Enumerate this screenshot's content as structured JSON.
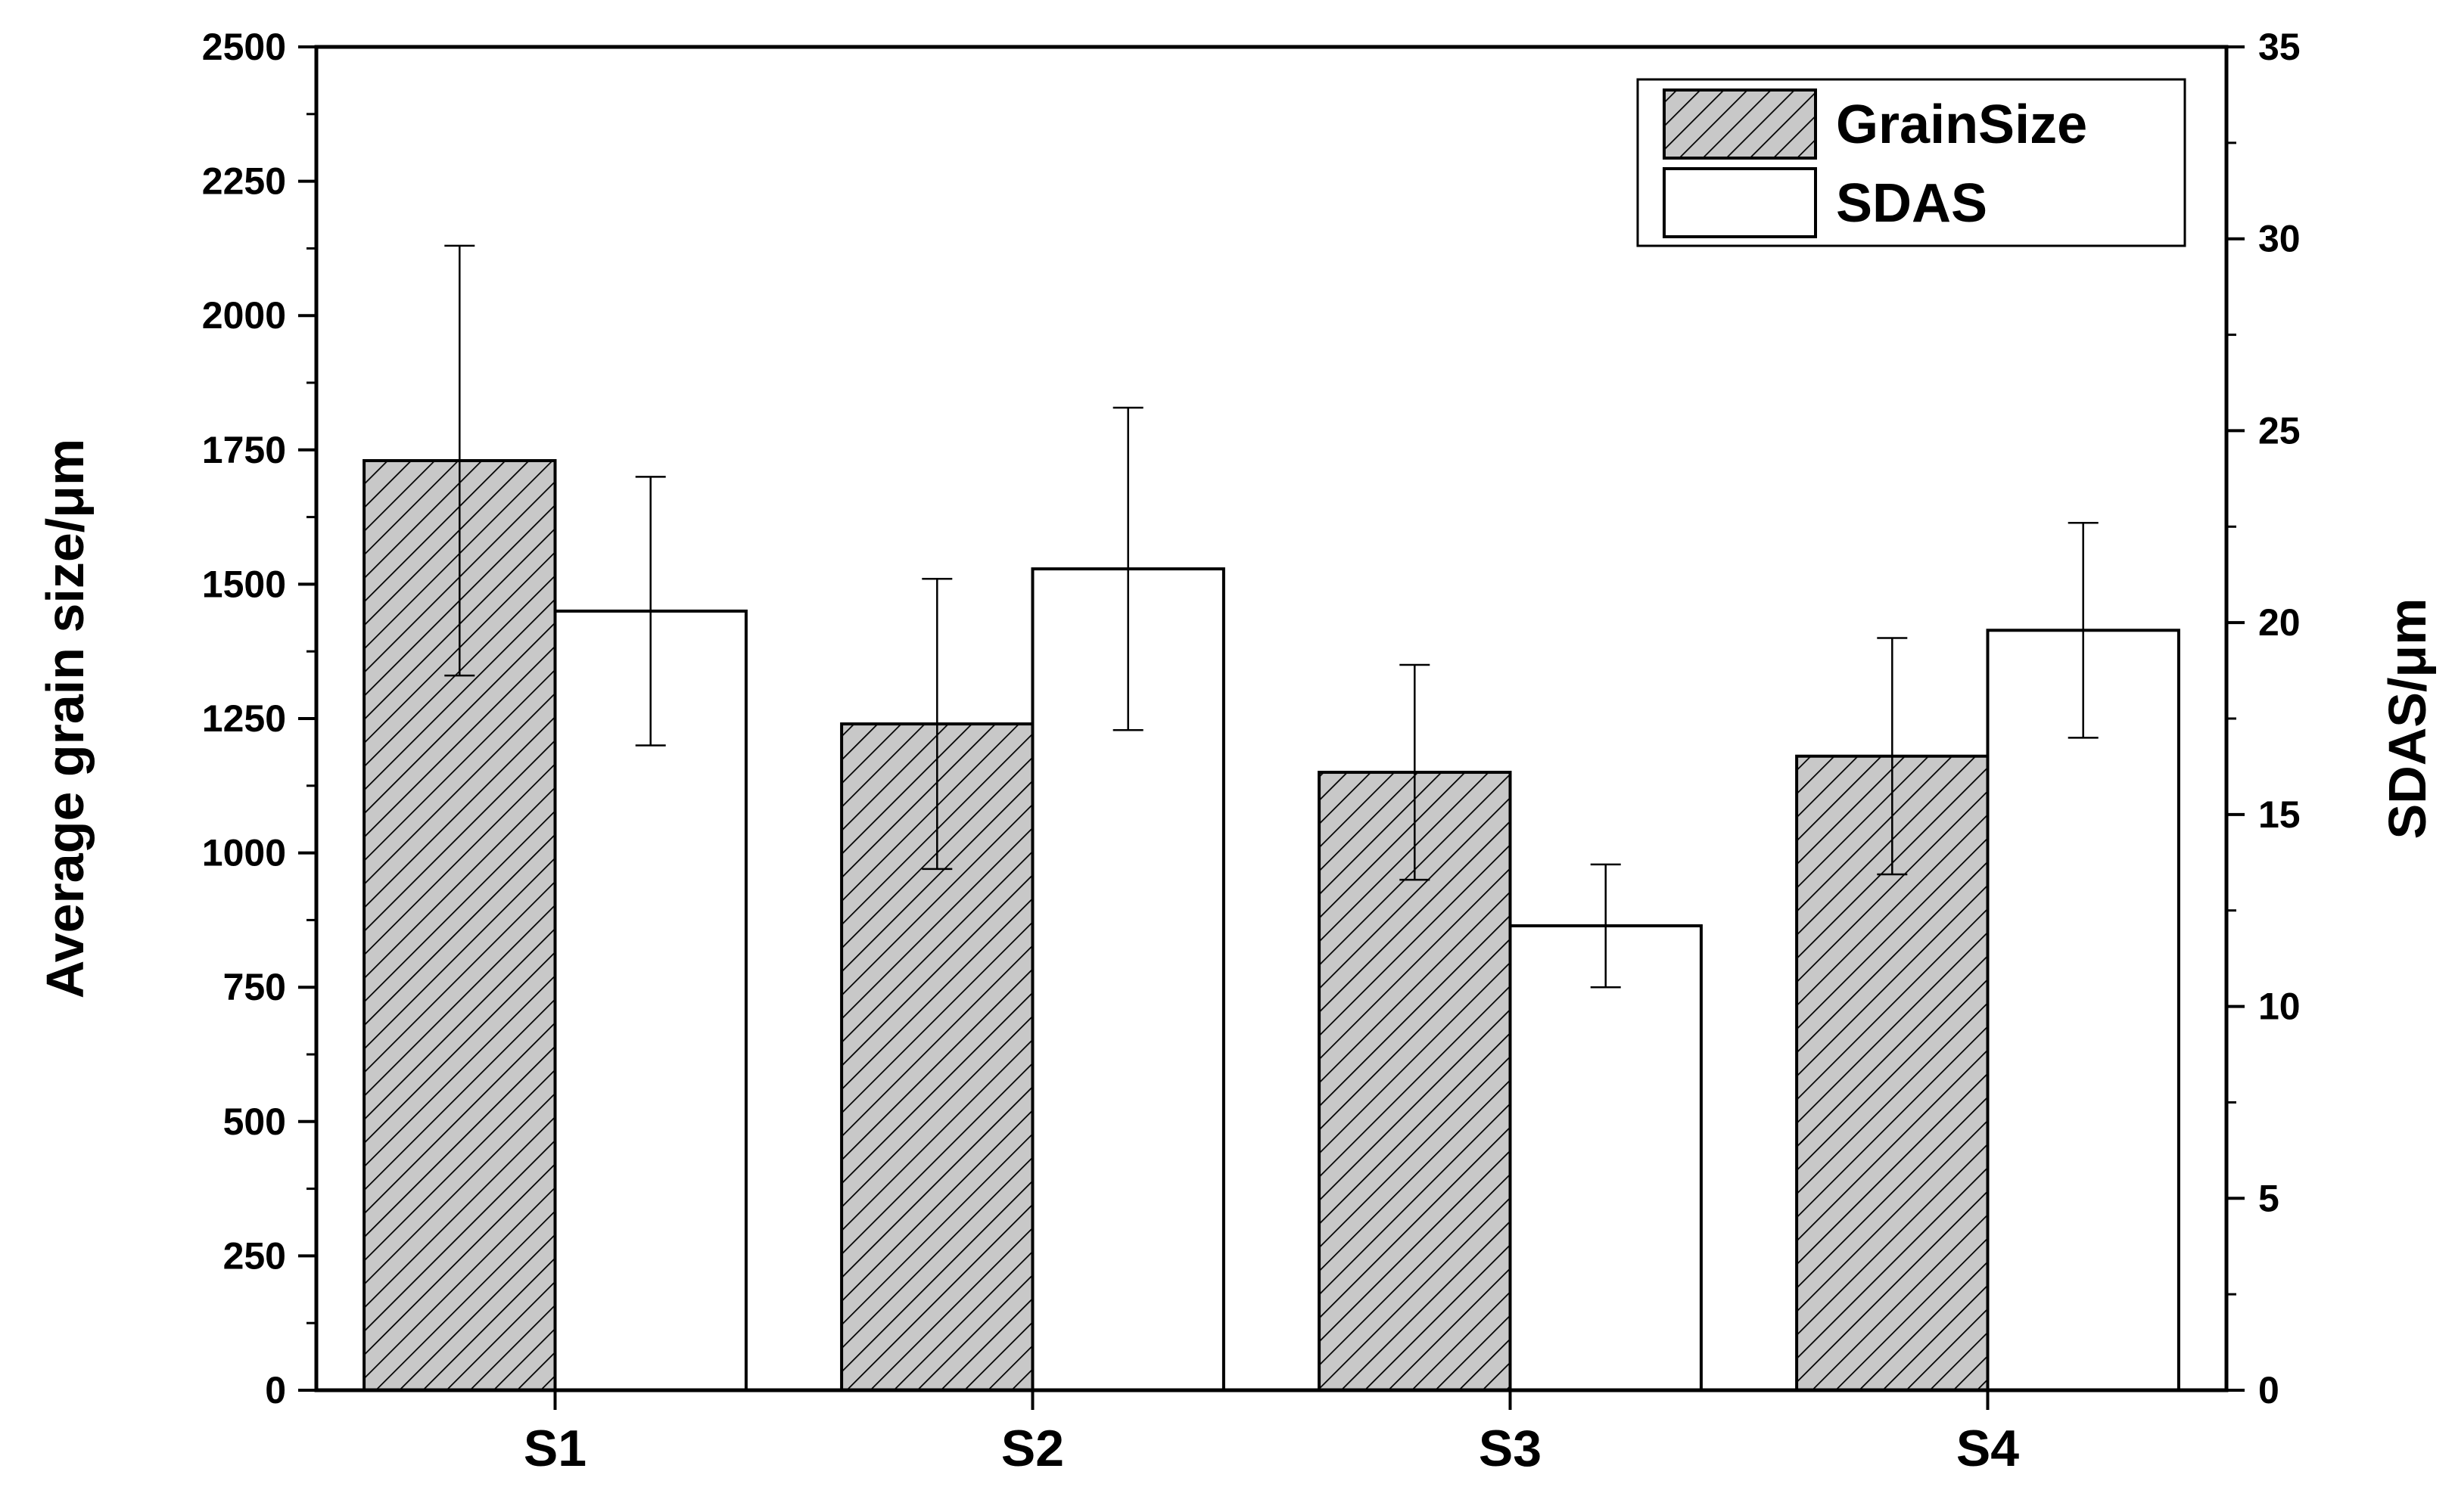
{
  "chart_data": {
    "type": "bar",
    "categories": [
      "S1",
      "S2",
      "S3",
      "S4"
    ],
    "ylabel": "Average grain size/μm",
    "y2label": "SDAS/μm",
    "ylim": [
      0,
      2500
    ],
    "y2lim": [
      0,
      35
    ],
    "yticks": [
      "0",
      "250",
      "500",
      "750",
      "1000",
      "1250",
      "1500",
      "1750",
      "2000",
      "2250",
      "2500"
    ],
    "y2ticks": [
      "0",
      "5",
      "10",
      "15",
      "20",
      "25",
      "30",
      "35"
    ],
    "grid": false,
    "legend_position": "top-right",
    "series": [
      {
        "name": "GrainSize",
        "axis": "left",
        "pattern": "hatched",
        "fill": "#c8c8c8",
        "values": [
          1730,
          1240,
          1150,
          1180
        ],
        "error": [
          400,
          270,
          200,
          220
        ]
      },
      {
        "name": "SDAS",
        "axis": "right",
        "pattern": "solid",
        "fill": "#ffffff",
        "values": [
          20.3,
          21.4,
          12.1,
          19.8
        ],
        "error": [
          3.5,
          4.2,
          1.6,
          2.8
        ]
      }
    ]
  }
}
